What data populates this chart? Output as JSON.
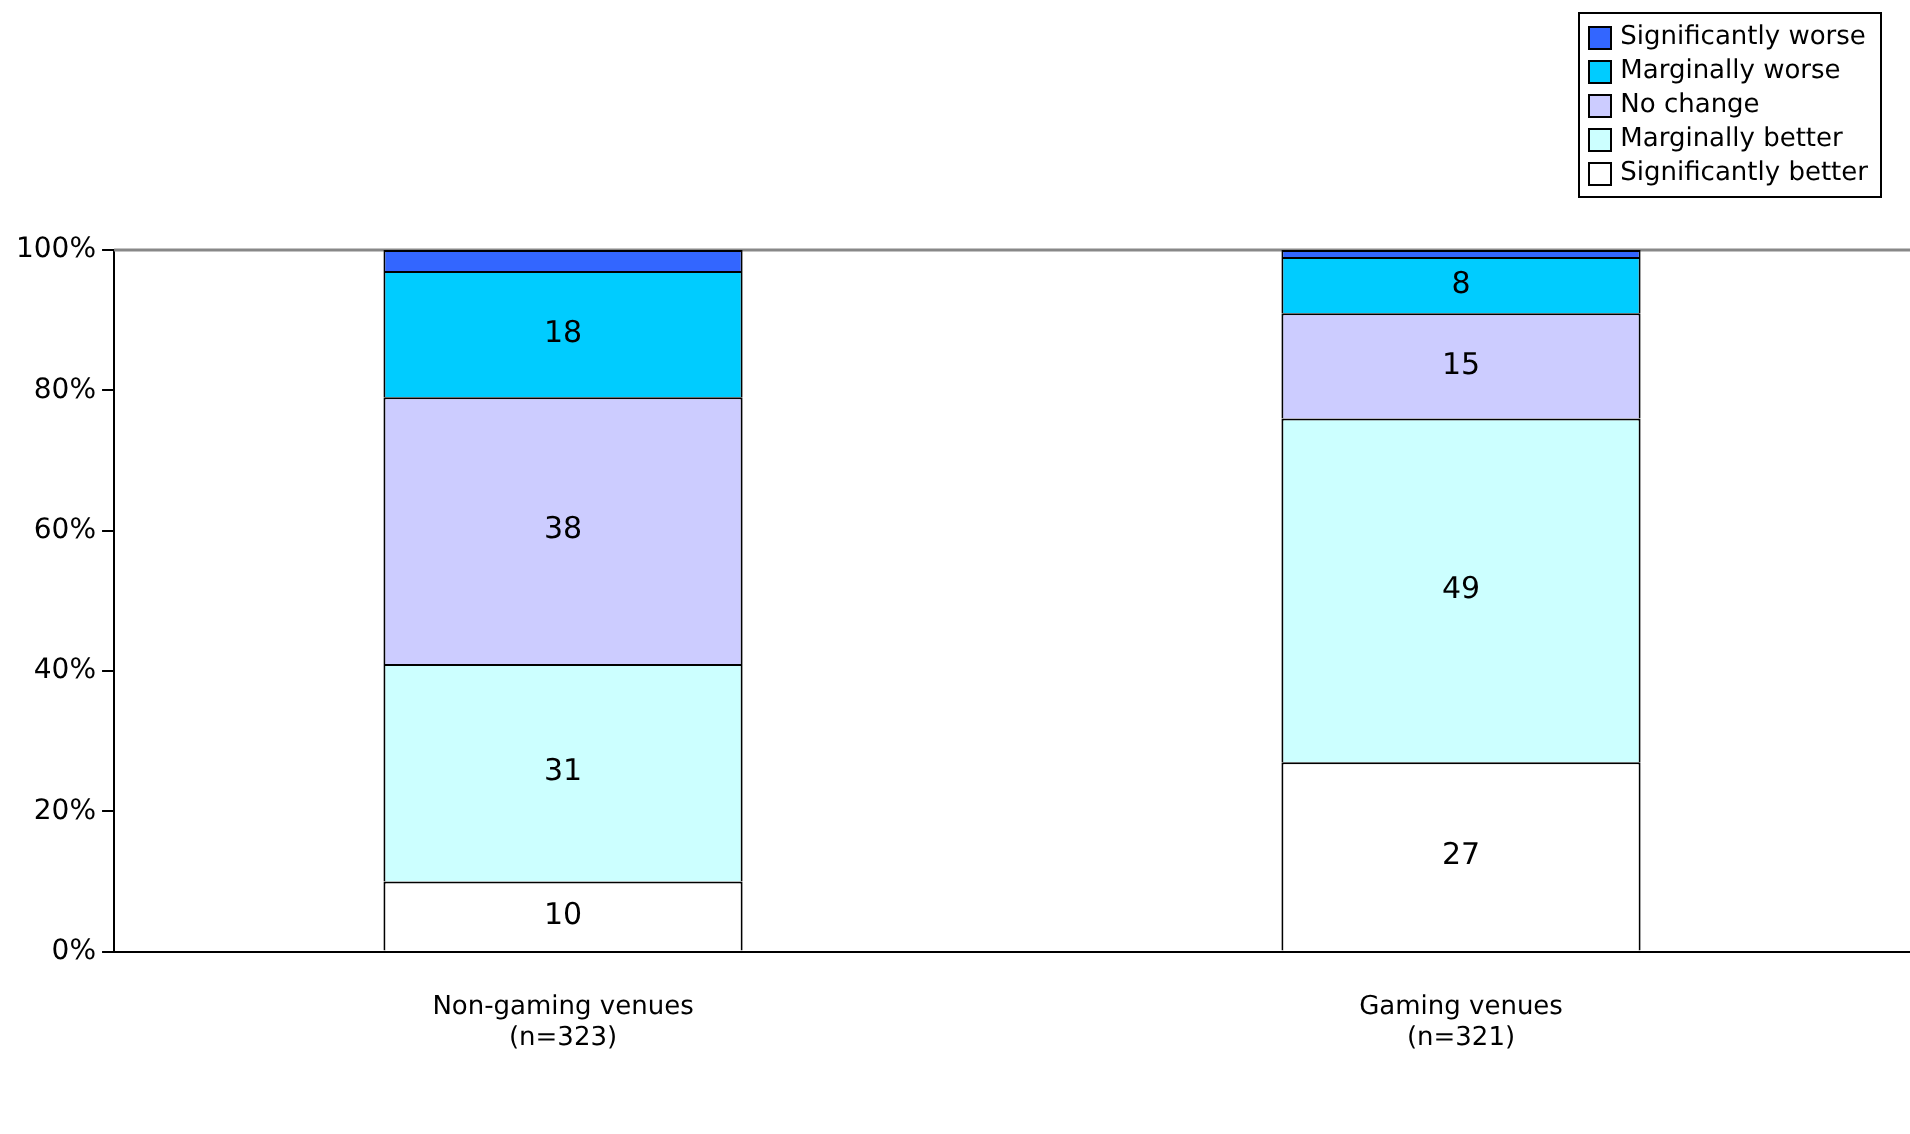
{
  "chart_data": {
    "type": "bar",
    "stacked": true,
    "categories": [
      "Non-gaming venues\n(n=323)",
      "Gaming venues\n(n=321)"
    ],
    "series": [
      {
        "name": "Significantly better",
        "color": "#ffffff",
        "values": [
          10,
          27
        ],
        "value_labels": [
          "10",
          "27"
        ]
      },
      {
        "name": "Marginally better",
        "color": "#ccffff",
        "values": [
          31,
          49
        ],
        "value_labels": [
          "31",
          "49"
        ]
      },
      {
        "name": "No change",
        "color": "#ccccff",
        "values": [
          38,
          15
        ],
        "value_labels": [
          "38",
          "15"
        ]
      },
      {
        "name": "Marginally worse",
        "color": "#00ccff",
        "values": [
          18,
          8
        ],
        "value_labels": [
          "18",
          "8"
        ]
      },
      {
        "name": "Significantly worse",
        "color": "#3366ff",
        "values": [
          3,
          1
        ],
        "value_labels": [
          null,
          null
        ]
      }
    ],
    "ylim": [
      0,
      100
    ],
    "yticks": [
      {
        "value": 0,
        "label": "0%"
      },
      {
        "value": 20,
        "label": "20%"
      },
      {
        "value": 40,
        "label": "40%"
      },
      {
        "value": 60,
        "label": "60%"
      },
      {
        "value": 80,
        "label": "80%"
      },
      {
        "value": 100,
        "label": "100%"
      }
    ],
    "grid": false,
    "legend": "top right"
  }
}
